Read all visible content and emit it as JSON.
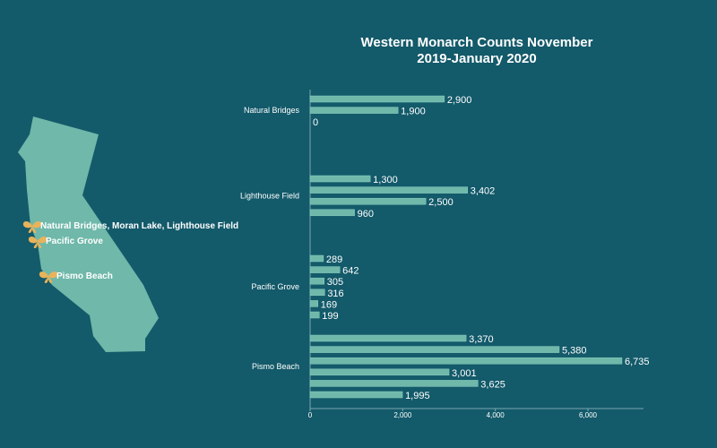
{
  "colors": {
    "background": "#135a6a",
    "bar": "#6fb8aa",
    "bar_stroke": "#8ccdc0",
    "map": "#6fb8aa",
    "butterfly": "#e8b35a",
    "axis": "#7aa7b0",
    "text": "#ffffff"
  },
  "map": {
    "locations": [
      {
        "name": "Natural Bridges, Moran Lake, Lighthouse Field",
        "icon": "butterfly-icon"
      },
      {
        "name": "Pacific Grove",
        "icon": "butterfly-icon"
      },
      {
        "name": "Pismo Beach",
        "icon": "butterfly-icon"
      }
    ]
  },
  "chart_data": {
    "type": "bar",
    "orientation": "horizontal",
    "title_lines": [
      "Western Monarch Counts November",
      "2019-January 2020"
    ],
    "xlim": [
      0,
      7200
    ],
    "xticks": [
      0,
      2000,
      4000,
      6000
    ],
    "xtick_labels": [
      "0",
      "2,000",
      "4,000",
      "6,000"
    ],
    "grid": false,
    "groups": [
      {
        "name": "Natural Bridges",
        "values": [
          2900,
          1900,
          0
        ],
        "labels": [
          "2,900",
          "1,900",
          "0"
        ]
      },
      {
        "name": "Lighthouse Field",
        "values": [
          1300,
          3402,
          2500,
          960
        ],
        "labels": [
          "1,300",
          "3,402",
          "2,500",
          "960"
        ]
      },
      {
        "name": "Pacific Grove",
        "values": [
          289,
          642,
          305,
          316,
          169,
          199
        ],
        "labels": [
          "289",
          "642",
          "305",
          "316",
          "169",
          "199"
        ]
      },
      {
        "name": "Pismo Beach",
        "values": [
          3370,
          5380,
          6735,
          3001,
          3625,
          1995
        ],
        "labels": [
          "3,370",
          "5,380",
          "6,735",
          "3,001",
          "3,625",
          "1,995"
        ]
      }
    ]
  }
}
